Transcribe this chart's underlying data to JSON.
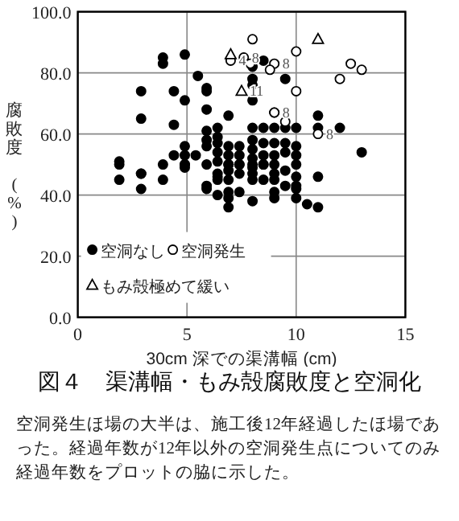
{
  "chart_data": {
    "type": "scatter",
    "title": "図４　渠溝幅・もみ殻腐敗度と空洞化",
    "xlabel": "30cm 深での渠溝幅 (cm)",
    "ylabel": "腐敗度　(%)",
    "xlim": [
      0,
      15
    ],
    "xticks": [
      0,
      5,
      10,
      15
    ],
    "ylim": [
      0,
      100
    ],
    "yticks": [
      {
        "value": 0,
        "label": "0.0"
      },
      {
        "value": 20,
        "label": "20.0"
      },
      {
        "value": 40,
        "label": "40.0"
      },
      {
        "value": 60,
        "label": "60.0"
      },
      {
        "value": 80,
        "label": "80.0"
      },
      {
        "value": 100,
        "label": "100.0"
      }
    ],
    "grid": true,
    "legend": "bottom left",
    "series": [
      {
        "name": "空洞なし",
        "color": "#000000",
        "marker": "circle",
        "x": [
          1.9,
          1.9,
          1.9,
          2.9,
          2.9,
          2.9,
          2.9,
          2.9,
          3.9,
          3.9,
          3.9,
          3.9,
          4.4,
          4.4,
          4.4,
          4.9,
          4.9,
          4.9,
          4.9,
          4.9,
          4.9,
          4.9,
          5.4,
          5.5,
          5.9,
          5.9,
          5.9,
          5.9,
          5.9,
          5.9,
          5.9,
          5.9,
          5.9,
          6.4,
          6.4,
          6.4,
          6.4,
          6.4,
          6.4,
          6.4,
          6.4,
          6.4,
          6.9,
          6.9,
          6.9,
          6.9,
          6.9,
          6.9,
          6.9,
          6.9,
          6.9,
          6.9,
          7.4,
          7.4,
          7.4,
          7.4,
          7.4,
          7.4,
          8.0,
          8.0,
          8.0,
          8.0,
          8.0,
          8.0,
          8.0,
          8.0,
          8.0,
          8.0,
          8.0,
          8.0,
          8.0,
          8.5,
          8.5,
          8.5,
          8.5,
          8.5,
          8.5,
          8.5,
          9.0,
          9.0,
          9.0,
          9.0,
          9.0,
          9.0,
          9.0,
          9.0,
          9.0,
          9.5,
          9.5,
          9.5,
          9.5,
          9.5,
          9.5,
          10.0,
          10.0,
          10.0,
          10.0,
          10.0,
          10.0,
          10.0,
          10.0,
          10.5,
          11.0,
          11.0,
          11.0,
          11.0,
          12.0,
          13.0
        ],
        "values": [
          51,
          50,
          45,
          74,
          65,
          47,
          47,
          42,
          85,
          83,
          50,
          45,
          74,
          63,
          53,
          86,
          71,
          56,
          53,
          50,
          50,
          49,
          53,
          79,
          75,
          74,
          68,
          61,
          58,
          56,
          50,
          43,
          42,
          62,
          59,
          57,
          54,
          51,
          47,
          46,
          45,
          40,
          66,
          56,
          53,
          50,
          48,
          50,
          45,
          41,
          39,
          36,
          56,
          53,
          50,
          47,
          50,
          41,
          82,
          78,
          76,
          71,
          62,
          58,
          55,
          52,
          49,
          50,
          45,
          47,
          38,
          84,
          62,
          57,
          53,
          50,
          50,
          45,
          67,
          62,
          57,
          53,
          50,
          47,
          45,
          41,
          39,
          78,
          62,
          57,
          54,
          48,
          43,
          62,
          56,
          53,
          50,
          46,
          43,
          42,
          39,
          37,
          66,
          62,
          46,
          36,
          62,
          54
        ]
      },
      {
        "name": "空洞発生",
        "color": "#ffffff",
        "marker": "circle",
        "x": [
          8.0,
          10.0,
          10.0,
          9.0,
          8.8,
          11.0,
          12.0,
          12.5,
          13.0,
          7.0,
          7.6,
          7.9,
          9.0,
          9.5
        ],
        "values": [
          91,
          87,
          74,
          83,
          81,
          60,
          78,
          83,
          81,
          84,
          85,
          83,
          67,
          64
        ]
      },
      {
        "name": "もみ殻極めて緩い",
        "color": "#ffffff",
        "marker": "triangle",
        "x": [
          11.0,
          7.0,
          7.5
        ],
        "values": [
          91,
          86,
          74
        ]
      }
    ],
    "annotations": [
      {
        "text": "4",
        "x": 7.0,
        "y": 84
      },
      {
        "text": "8",
        "x": 7.6,
        "y": 85
      },
      {
        "text": "11",
        "x": 7.5,
        "y": 74
      },
      {
        "text": "8",
        "x": 9.0,
        "y": 83
      },
      {
        "text": "8",
        "x": 9.0,
        "y": 67
      },
      {
        "text": "8",
        "x": 11.0,
        "y": 60
      },
      "空洞発生ほ場の大半は、施工後12年経過したほ場であった。経過年数が12年以外の空洞発生点についてのみ経過年数をプロットの脇に示した。"
    ]
  }
}
